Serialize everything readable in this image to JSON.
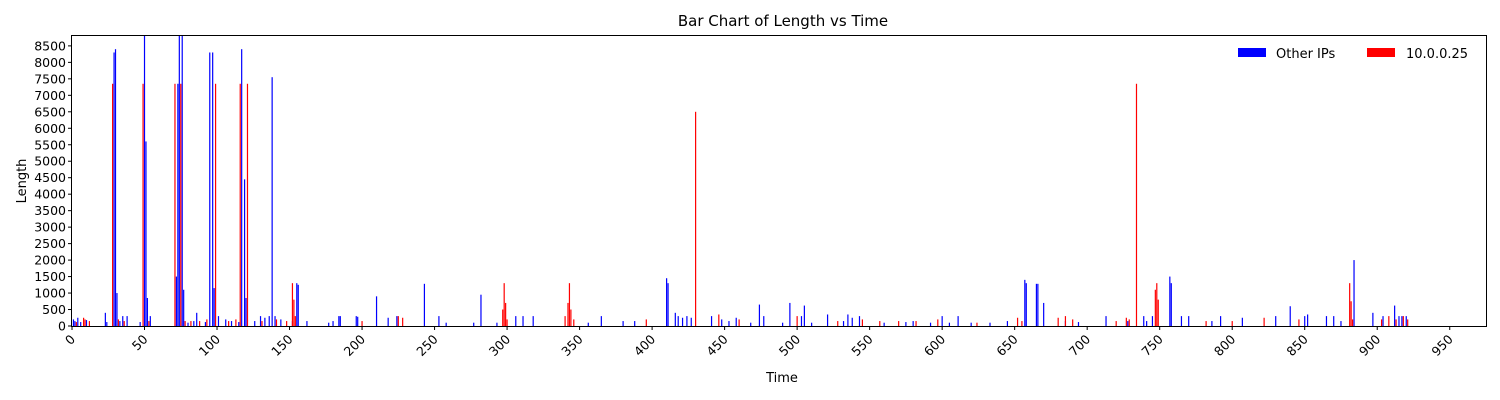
{
  "chart_data": {
    "type": "bar",
    "title": "Bar Chart of Length vs Time",
    "xlabel": "Time",
    "ylabel": "Length",
    "xlim": [
      0,
      975
    ],
    "ylim": [
      0,
      8800
    ],
    "xticks": [
      0,
      50,
      100,
      150,
      200,
      250,
      300,
      350,
      400,
      450,
      500,
      550,
      600,
      650,
      700,
      750,
      800,
      850,
      900,
      950
    ],
    "yticks": [
      0,
      500,
      1000,
      1500,
      2000,
      2500,
      3000,
      3500,
      4000,
      4500,
      5000,
      5500,
      6000,
      6500,
      7000,
      7500,
      8000,
      8500
    ],
    "grid": false,
    "legend_position": "top-right",
    "series": [
      {
        "name": "Other IPs",
        "color": "#0000ff",
        "points": [
          [
            1,
            200
          ],
          [
            2,
            150
          ],
          [
            4,
            250
          ],
          [
            6,
            120
          ],
          [
            10,
            180
          ],
          [
            23,
            400
          ],
          [
            24,
            120
          ],
          [
            29,
            8300
          ],
          [
            30,
            8400
          ],
          [
            31,
            1000
          ],
          [
            33,
            150
          ],
          [
            35,
            300
          ],
          [
            38,
            300
          ],
          [
            47,
            120
          ],
          [
            50,
            8800
          ],
          [
            51,
            5600
          ],
          [
            52,
            850
          ],
          [
            54,
            300
          ],
          [
            72,
            1500
          ],
          [
            73,
            7350
          ],
          [
            74,
            8800
          ],
          [
            76,
            8800
          ],
          [
            77,
            1100
          ],
          [
            80,
            100
          ],
          [
            84,
            150
          ],
          [
            86,
            400
          ],
          [
            92,
            120
          ],
          [
            95,
            8300
          ],
          [
            97,
            8300
          ],
          [
            98,
            1150
          ],
          [
            101,
            300
          ],
          [
            106,
            200
          ],
          [
            110,
            150
          ],
          [
            115,
            120
          ],
          [
            117,
            8400
          ],
          [
            119,
            4450
          ],
          [
            120,
            850
          ],
          [
            126,
            150
          ],
          [
            130,
            300
          ],
          [
            133,
            250
          ],
          [
            136,
            300
          ],
          [
            138,
            7550
          ],
          [
            140,
            300
          ],
          [
            144,
            200
          ],
          [
            152,
            150
          ],
          [
            155,
            1300
          ],
          [
            156,
            1250
          ],
          [
            162,
            150
          ],
          [
            177,
            100
          ],
          [
            180,
            150
          ],
          [
            184,
            300
          ],
          [
            185,
            300
          ],
          [
            196,
            300
          ],
          [
            197,
            280
          ],
          [
            210,
            900
          ],
          [
            218,
            250
          ],
          [
            224,
            300
          ],
          [
            243,
            1280
          ],
          [
            253,
            300
          ],
          [
            258,
            100
          ],
          [
            277,
            100
          ],
          [
            282,
            950
          ],
          [
            293,
            100
          ],
          [
            306,
            300
          ],
          [
            311,
            300
          ],
          [
            318,
            300
          ],
          [
            356,
            100
          ],
          [
            365,
            300
          ],
          [
            380,
            150
          ],
          [
            388,
            150
          ],
          [
            410,
            1450
          ],
          [
            411,
            1300
          ],
          [
            416,
            400
          ],
          [
            418,
            300
          ],
          [
            421,
            250
          ],
          [
            424,
            300
          ],
          [
            427,
            250
          ],
          [
            441,
            300
          ],
          [
            448,
            200
          ],
          [
            453,
            150
          ],
          [
            458,
            250
          ],
          [
            468,
            100
          ],
          [
            474,
            650
          ],
          [
            477,
            300
          ],
          [
            490,
            100
          ],
          [
            495,
            700
          ],
          [
            503,
            300
          ],
          [
            505,
            620
          ],
          [
            510,
            100
          ],
          [
            521,
            350
          ],
          [
            532,
            150
          ],
          [
            535,
            350
          ],
          [
            538,
            250
          ],
          [
            543,
            300
          ],
          [
            560,
            100
          ],
          [
            575,
            120
          ],
          [
            580,
            150
          ],
          [
            592,
            100
          ],
          [
            600,
            300
          ],
          [
            605,
            100
          ],
          [
            611,
            300
          ],
          [
            620,
            100
          ],
          [
            633,
            100
          ],
          [
            645,
            150
          ],
          [
            657,
            1400
          ],
          [
            658,
            1300
          ],
          [
            665,
            1280
          ],
          [
            666,
            1280
          ],
          [
            670,
            700
          ],
          [
            685,
            150
          ],
          [
            694,
            120
          ],
          [
            713,
            300
          ],
          [
            728,
            150
          ],
          [
            739,
            300
          ],
          [
            741,
            150
          ],
          [
            745,
            300
          ],
          [
            757,
            1500
          ],
          [
            758,
            1300
          ],
          [
            765,
            300
          ],
          [
            770,
            300
          ],
          [
            786,
            150
          ],
          [
            792,
            300
          ],
          [
            807,
            250
          ],
          [
            830,
            300
          ],
          [
            840,
            600
          ],
          [
            850,
            300
          ],
          [
            852,
            350
          ],
          [
            865,
            300
          ],
          [
            870,
            300
          ],
          [
            875,
            150
          ],
          [
            884,
            2000
          ],
          [
            897,
            400
          ],
          [
            904,
            300
          ],
          [
            912,
            620
          ],
          [
            915,
            300
          ],
          [
            917,
            300
          ],
          [
            920,
            300
          ]
        ]
      },
      {
        "name": "10.0.0.25",
        "color": "#ff0000",
        "points": [
          [
            3,
            120
          ],
          [
            8,
            250
          ],
          [
            9,
            200
          ],
          [
            12,
            150
          ],
          [
            28,
            7350
          ],
          [
            32,
            200
          ],
          [
            36,
            150
          ],
          [
            49,
            7350
          ],
          [
            53,
            150
          ],
          [
            71,
            7350
          ],
          [
            75,
            7350
          ],
          [
            78,
            150
          ],
          [
            82,
            150
          ],
          [
            88,
            150
          ],
          [
            93,
            200
          ],
          [
            99,
            7350
          ],
          [
            108,
            150
          ],
          [
            113,
            200
          ],
          [
            116,
            7350
          ],
          [
            121,
            7350
          ],
          [
            131,
            150
          ],
          [
            141,
            200
          ],
          [
            148,
            150
          ],
          [
            152,
            1300
          ],
          [
            153,
            800
          ],
          [
            154,
            300
          ],
          [
            200,
            150
          ],
          [
            225,
            300
          ],
          [
            228,
            250
          ],
          [
            297,
            500
          ],
          [
            298,
            1300
          ],
          [
            299,
            700
          ],
          [
            300,
            200
          ],
          [
            340,
            300
          ],
          [
            342,
            700
          ],
          [
            343,
            1300
          ],
          [
            344,
            500
          ],
          [
            346,
            200
          ],
          [
            396,
            200
          ],
          [
            430,
            6500
          ],
          [
            446,
            350
          ],
          [
            460,
            200
          ],
          [
            500,
            300
          ],
          [
            528,
            150
          ],
          [
            545,
            200
          ],
          [
            557,
            150
          ],
          [
            570,
            150
          ],
          [
            582,
            150
          ],
          [
            597,
            200
          ],
          [
            624,
            100
          ],
          [
            652,
            250
          ],
          [
            655,
            150
          ],
          [
            680,
            250
          ],
          [
            685,
            300
          ],
          [
            690,
            200
          ],
          [
            720,
            150
          ],
          [
            727,
            250
          ],
          [
            729,
            200
          ],
          [
            734,
            7350
          ],
          [
            747,
            1100
          ],
          [
            748,
            1300
          ],
          [
            749,
            800
          ],
          [
            782,
            150
          ],
          [
            800,
            150
          ],
          [
            822,
            250
          ],
          [
            846,
            200
          ],
          [
            881,
            1300
          ],
          [
            882,
            750
          ],
          [
            883,
            200
          ],
          [
            903,
            200
          ],
          [
            908,
            300
          ],
          [
            913,
            200
          ],
          [
            918,
            300
          ],
          [
            921,
            200
          ]
        ]
      }
    ]
  }
}
